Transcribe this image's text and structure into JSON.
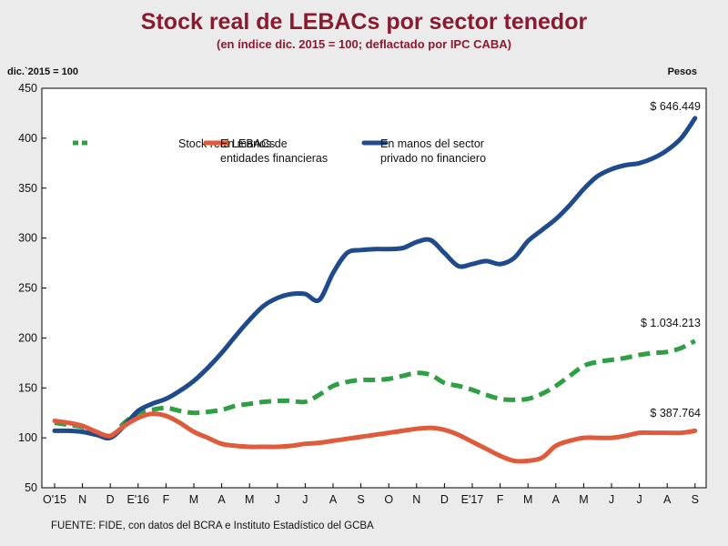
{
  "title": "Stock real de LEBACs por sector tenedor",
  "subtitle": "(en índice dic. 2015 = 100; deflactado por IPC CABA)",
  "unit_left": "dic.`2015 = 100",
  "unit_right": "Pesos",
  "source": "FUENTE: FIDE, con datos del BCRA e Instituto Estadístico del GCBA",
  "colors": {
    "green": "#2ea043",
    "red": "#e05a3c",
    "blue": "#1f4a8c",
    "title": "#8b1a2e"
  },
  "chart_data": {
    "type": "line",
    "title": "Stock real de LEBACs por sector tenedor",
    "subtitle": "(en índice dic. 2015 = 100; deflactado por IPC CABA)",
    "ylabel": "dic.`2015 = 100",
    "ylim": [
      50,
      450
    ],
    "yticks": [
      50,
      100,
      150,
      200,
      250,
      300,
      350,
      400,
      450
    ],
    "categories": [
      "O'15",
      "N",
      "D",
      "E'16",
      "F",
      "M",
      "A",
      "M",
      "J",
      "J",
      "A",
      "S",
      "O",
      "N",
      "D",
      "E'17",
      "F",
      "M",
      "A",
      "M",
      "J",
      "J",
      "A",
      "S"
    ],
    "legend": [
      "Stock real LEBACs",
      "En manos de entidades financieras",
      "En manos del sector privado no financiero"
    ],
    "legend_lines": [
      [
        "Stock real LEBACs"
      ],
      [
        "En manos de",
        "entidades financieras"
      ],
      [
        "En manos del sector",
        "privado no financiero"
      ]
    ],
    "series": [
      {
        "name": "Stock real LEBACs",
        "style": "dashed",
        "color": "#2ea043",
        "x": [
          0,
          0.5,
          1,
          1.5,
          2,
          2.5,
          3,
          3.5,
          4,
          4.5,
          5,
          5.5,
          6,
          6.5,
          7,
          7.5,
          8,
          8.5,
          9,
          9.5,
          10,
          10.5,
          11,
          11.5,
          12,
          12.5,
          13,
          13.5,
          14,
          14.5,
          15,
          15.5,
          16,
          16.5,
          17,
          17.5,
          18,
          18.5,
          19,
          19.5,
          20,
          20.5,
          21,
          21.5,
          22,
          22.5,
          23
        ],
        "values": [
          115,
          113,
          111,
          106,
          101,
          115,
          125,
          128,
          130,
          127,
          125,
          126,
          128,
          132,
          134,
          136,
          137,
          137,
          136,
          143,
          152,
          156,
          158,
          158,
          159,
          162,
          165,
          163,
          155,
          152,
          148,
          143,
          139,
          138,
          139,
          144,
          152,
          162,
          172,
          176,
          178,
          180,
          183,
          185,
          186,
          190,
          197
        ],
        "end_label": "$ 1.034.213"
      },
      {
        "name": "En manos de entidades financieras",
        "style": "solid",
        "color": "#e05a3c",
        "x": [
          0,
          0.5,
          1,
          1.5,
          2,
          2.5,
          3,
          3.5,
          4,
          4.5,
          5,
          5.5,
          6,
          6.5,
          7,
          7.5,
          8,
          8.5,
          9,
          9.5,
          10,
          10.5,
          11,
          11.5,
          12,
          12.5,
          13,
          13.5,
          14,
          14.5,
          15,
          15.5,
          16,
          16.5,
          17,
          17.5,
          18,
          18.5,
          19,
          19.5,
          20,
          20.5,
          21,
          21.5,
          22,
          22.5,
          23
        ],
        "values": [
          117,
          115,
          112,
          106,
          102,
          112,
          120,
          124,
          122,
          115,
          106,
          100,
          94,
          92,
          91,
          91,
          91,
          92,
          94,
          95,
          97,
          99,
          101,
          103,
          105,
          107,
          109,
          110,
          108,
          103,
          96,
          89,
          82,
          77,
          77,
          80,
          92,
          97,
          100,
          100,
          100,
          102,
          105,
          105,
          105,
          105,
          107
        ],
        "end_label": "$ 387.764"
      },
      {
        "name": "En manos del sector privado no financiero",
        "style": "solid",
        "color": "#1f4a8c",
        "x": [
          0,
          0.5,
          1,
          1.5,
          2,
          2.5,
          3,
          3.5,
          4,
          4.5,
          5,
          5.5,
          6,
          6.5,
          7,
          7.5,
          8,
          8.5,
          9,
          9.5,
          10,
          10.5,
          11,
          11.5,
          12,
          12.5,
          13,
          13.5,
          14,
          14.5,
          15,
          15.5,
          16,
          16.5,
          17,
          17.5,
          18,
          18.5,
          19,
          19.5,
          20,
          20.5,
          21,
          21.5,
          22,
          22.5,
          23
        ],
        "values": [
          107,
          107,
          106,
          103,
          100,
          112,
          127,
          134,
          139,
          147,
          157,
          170,
          185,
          202,
          218,
          232,
          240,
          244,
          244,
          238,
          265,
          285,
          288,
          289,
          289,
          290,
          296,
          298,
          285,
          272,
          274,
          277,
          274,
          280,
          297,
          308,
          319,
          333,
          349,
          362,
          369,
          373,
          375,
          380,
          388,
          400,
          420
        ],
        "end_label": "$ 646.449"
      }
    ]
  }
}
